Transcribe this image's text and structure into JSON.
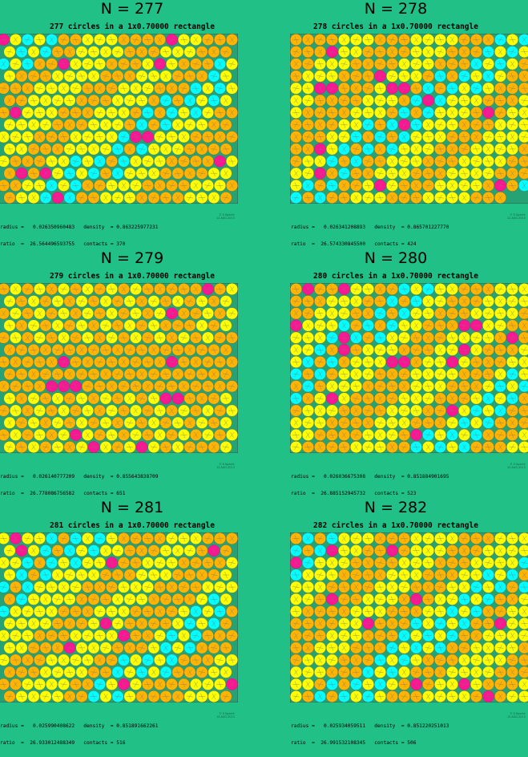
{
  "colors": {
    "background": "#21c086",
    "rect_fill": "#26a375",
    "yellow": "#ffff00",
    "orange": "#ffb400",
    "cyan": "#00ffff",
    "magenta": "#ff1493"
  },
  "panels": [
    {
      "title": "N = 277",
      "subtitle": "277 circles in a 1x0.70000 rectangle",
      "radius_line": "radius =   0.026350960483   density  = 0.863225977231",
      "ratio_line": "ratio  =  26.564496593755   contacts = 370",
      "credit": "© E.Specht\n12-AUG-2013",
      "circle_count": 277,
      "radius": 0.026350960483,
      "density": 0.863225977231,
      "ratio": 26.564496593755,
      "contacts": 370,
      "cols": 20,
      "rows": 14
    },
    {
      "title": "N = 278",
      "subtitle": "278 circles in a 1x0.70000 rectangle",
      "radius_line": "radius =   0.026341208893   density  = 0.865701227770",
      "ratio_line": "ratio  =  26.574330845500   contacts = 424",
      "credit": "© E.Specht\n12-AUG-2013",
      "circle_count": 278,
      "radius": 0.026341208893,
      "density": 0.86570122777,
      "ratio": 26.5743308455,
      "contacts": 424,
      "cols": 20,
      "rows": 14
    },
    {
      "title": "N = 279",
      "subtitle": "279 circles in a 1x0.70000 rectangle",
      "radius_line": "radius =   0.026140777209   density  = 0.855643838709",
      "ratio_line": "ratio  =  26.778086756582   contacts = 651",
      "credit": "© E.Specht\n12-AUG-2013",
      "circle_count": 279,
      "radius": 0.026140777209,
      "density": 0.855643838709,
      "ratio": 26.778086756582,
      "contacts": 651,
      "cols": 20,
      "rows": 14
    },
    {
      "title": "N = 280",
      "subtitle": "280 circles in a 1x0.70000 rectangle",
      "radius_line": "radius =   0.026036675308   density  = 0.851884901695",
      "ratio_line": "ratio  =  26.885152945732   contacts = 523",
      "credit": "© E.Specht\n12-AUG-2013",
      "circle_count": 280,
      "radius": 0.026036675308,
      "density": 0.851884901695,
      "ratio": 26.885152945732,
      "contacts": 523,
      "cols": 20,
      "rows": 14
    },
    {
      "title": "N = 281",
      "subtitle": "281 circles in a 1x0.70000 rectangle",
      "radius_line": "radius =   0.025990408622   density  = 0.851891662261",
      "ratio_line": "ratio  =  26.933012488349   contacts = 516",
      "credit": "© E.Specht\n15-AUG-2013",
      "circle_count": 281,
      "radius": 0.025990408622,
      "density": 0.851891662261,
      "ratio": 26.933012488349,
      "contacts": 516,
      "cols": 20,
      "rows": 14
    },
    {
      "title": "N = 282",
      "subtitle": "282 circles in a 1x0.70000 rectangle",
      "radius_line": "radius =   0.025934059511   density  = 0.851220251013",
      "ratio_line": "ratio  =  26.991532108345   contacts = 506",
      "credit": "© E.Specht\n15-AUG-2013",
      "circle_count": 282,
      "radius": 0.025934059511,
      "density": 0.851220251013,
      "ratio": 26.991532108345,
      "contacts": 506,
      "cols": 20,
      "rows": 14
    }
  ]
}
